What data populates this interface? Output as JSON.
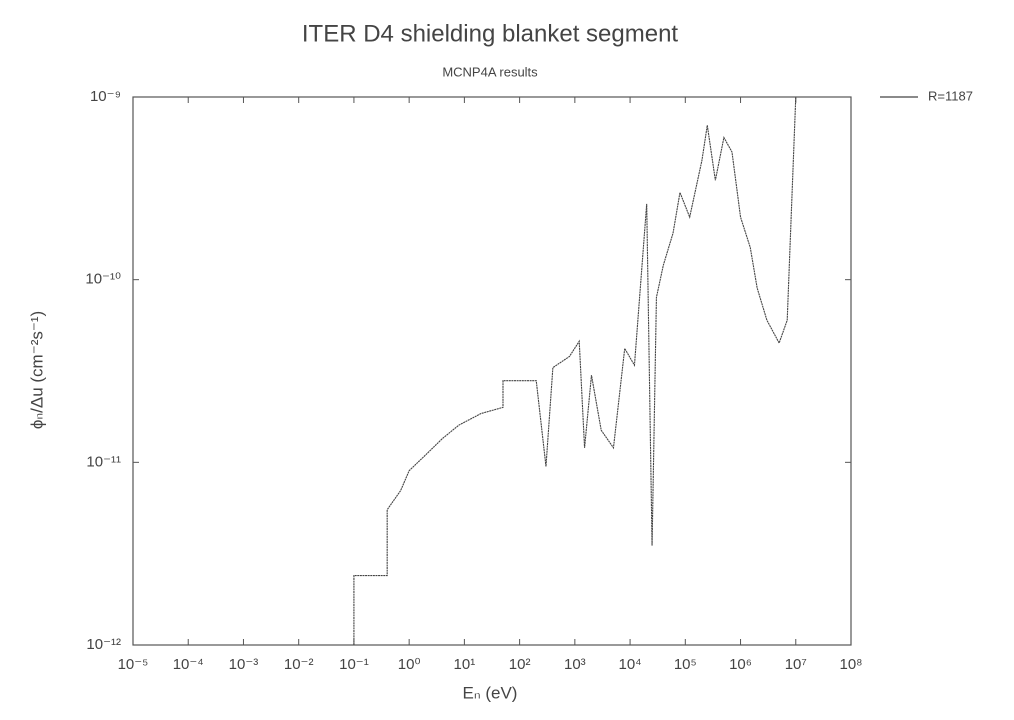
{
  "chart_data": {
    "type": "line",
    "title": "ITER D4 shielding blanket segment",
    "subtitle": "MCNP4A results",
    "x_label": "Eₙ (eV)",
    "y_label": "ϕₙ/Δu (cm⁻²s⁻¹)",
    "xscale": "log",
    "yscale": "log",
    "grid": false,
    "legend": "upper right",
    "xlim": [
      1e-05,
      100000000.0
    ],
    "ylim": [
      1e-12,
      1e-09
    ],
    "xticks": [
      {
        "value": 1e-05,
        "label": "10⁻⁵"
      },
      {
        "value": 0.0001,
        "label": "10⁻⁴"
      },
      {
        "value": 0.001,
        "label": "10⁻³"
      },
      {
        "value": 0.01,
        "label": "10⁻²"
      },
      {
        "value": 0.1,
        "label": "10⁻¹"
      },
      {
        "value": 1,
        "label": "10⁰"
      },
      {
        "value": 10,
        "label": "10¹"
      },
      {
        "value": 100,
        "label": "10²"
      },
      {
        "value": 1000,
        "label": "10³"
      },
      {
        "value": 10000,
        "label": "10⁴"
      },
      {
        "value": 100000,
        "label": "10⁵"
      },
      {
        "value": 1000000,
        "label": "10⁶"
      },
      {
        "value": 10000000,
        "label": "10⁷"
      },
      {
        "value": 100000000,
        "label": "10⁸"
      }
    ],
    "yticks": [
      {
        "value": 1e-12,
        "label": "10⁻¹²"
      },
      {
        "value": 1e-11,
        "label": "10⁻¹¹"
      },
      {
        "value": 1e-10,
        "label": "10⁻¹⁰"
      },
      {
        "value": 1e-09,
        "label": "10⁻⁹"
      }
    ],
    "x": [
      0.1,
      0.1,
      0.4,
      0.4,
      0.7,
      1,
      2,
      4,
      8,
      20,
      50,
      50,
      200,
      300,
      400,
      800,
      1200,
      1500,
      2000,
      3000,
      5000,
      8000,
      12000,
      20000,
      25000,
      30000,
      40000,
      60000,
      80000,
      120000,
      200000,
      250000,
      350000,
      500000,
      700000,
      1000000,
      1500000,
      2000000,
      3000000,
      5000000,
      7000000,
      10000000
    ],
    "series": [
      {
        "name": "R=1187",
        "color": "#444444",
        "values": [
          1e-12,
          2.4e-12,
          2.4e-12,
          5.5e-12,
          7e-12,
          9e-12,
          1.1e-11,
          1.35e-11,
          1.6e-11,
          1.85e-11,
          2e-11,
          2.8e-11,
          2.8e-11,
          9.5e-12,
          3.3e-11,
          3.8e-11,
          4.6e-11,
          1.2e-11,
          3e-11,
          1.5e-11,
          1.2e-11,
          4.2e-11,
          3.4e-11,
          2.6e-10,
          3.5e-12,
          8e-11,
          1.2e-10,
          1.8e-10,
          3e-10,
          2.2e-10,
          4.5e-10,
          7e-10,
          3.5e-10,
          6e-10,
          5e-10,
          2.2e-10,
          1.5e-10,
          9e-11,
          6e-11,
          4.5e-11,
          6e-11,
          1e-09
        ]
      }
    ]
  }
}
